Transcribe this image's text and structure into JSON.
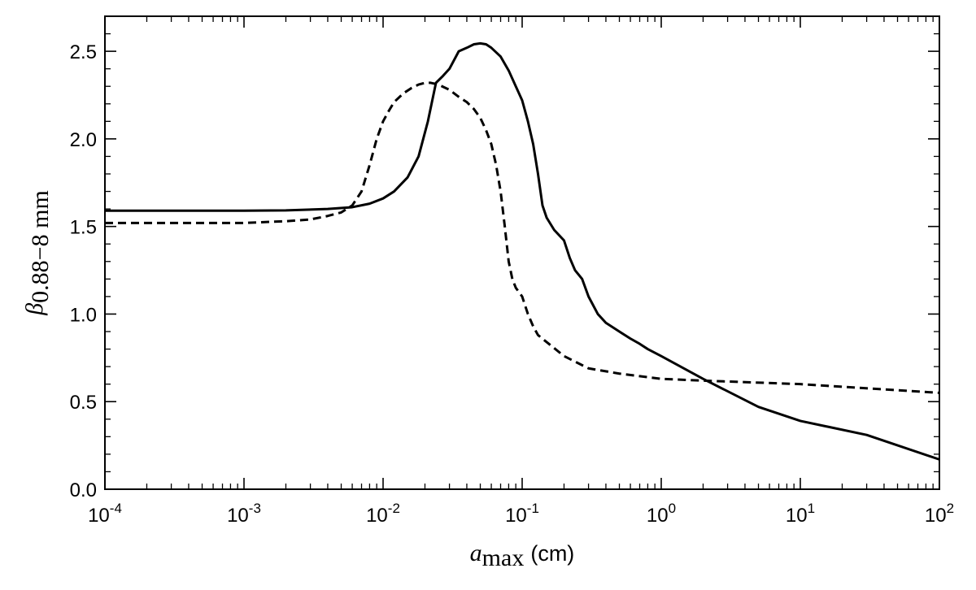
{
  "chart_data": {
    "type": "line",
    "title": "",
    "xscale": "log",
    "xlim": [
      0.0001,
      100
    ],
    "ylim": [
      0.0,
      2.7
    ],
    "xlabel": {
      "symbol": "a",
      "subscript": "max",
      "unit": "(cm)"
    },
    "ylabel": {
      "symbol": "β",
      "subscript": "0.88−8 mm"
    },
    "x_tick_labels": [
      {
        "value": 0.0001,
        "base": "10",
        "exp": "-4"
      },
      {
        "value": 0.001,
        "base": "10",
        "exp": "-3"
      },
      {
        "value": 0.01,
        "base": "10",
        "exp": "-2"
      },
      {
        "value": 0.1,
        "base": "10",
        "exp": "-1"
      },
      {
        "value": 1,
        "base": "10",
        "exp": "0"
      },
      {
        "value": 10,
        "base": "10",
        "exp": "1"
      },
      {
        "value": 100,
        "base": "10",
        "exp": "2"
      }
    ],
    "y_ticks": [
      {
        "value": 0.0,
        "label": "0.0"
      },
      {
        "value": 0.5,
        "label": "0.5"
      },
      {
        "value": 1.0,
        "label": "1.0"
      },
      {
        "value": 1.5,
        "label": "1.5"
      },
      {
        "value": 2.0,
        "label": "2.0"
      },
      {
        "value": 2.5,
        "label": "2.5"
      }
    ],
    "grid": false,
    "legend": "none",
    "series": [
      {
        "style": "solid",
        "color": "#000000",
        "x": [
          0.0001,
          0.001,
          0.002,
          0.004,
          0.006,
          0.008,
          0.01,
          0.012,
          0.015,
          0.018,
          0.021,
          0.024,
          0.027,
          0.03,
          0.035,
          0.04,
          0.045,
          0.05,
          0.055,
          0.06,
          0.07,
          0.08,
          0.09,
          0.1,
          0.11,
          0.12,
          0.13,
          0.14,
          0.15,
          0.17,
          0.2,
          0.22,
          0.24,
          0.27,
          0.3,
          0.35,
          0.4,
          0.5,
          0.6,
          0.7,
          0.8,
          1.0,
          2.0,
          5.0,
          10,
          30,
          100
        ],
        "y": [
          1.59,
          1.59,
          1.592,
          1.6,
          1.61,
          1.63,
          1.66,
          1.7,
          1.78,
          1.9,
          2.1,
          2.32,
          2.36,
          2.4,
          2.5,
          2.52,
          2.54,
          2.545,
          2.54,
          2.52,
          2.47,
          2.39,
          2.3,
          2.22,
          2.1,
          1.97,
          1.8,
          1.62,
          1.55,
          1.48,
          1.42,
          1.32,
          1.25,
          1.2,
          1.1,
          1.0,
          0.95,
          0.9,
          0.86,
          0.83,
          0.8,
          0.76,
          0.63,
          0.47,
          0.39,
          0.31,
          0.17
        ]
      },
      {
        "style": "dashed",
        "color": "#000000",
        "x": [
          0.0001,
          0.001,
          0.002,
          0.003,
          0.004,
          0.005,
          0.006,
          0.007,
          0.008,
          0.009,
          0.01,
          0.011,
          0.012,
          0.014,
          0.016,
          0.018,
          0.02,
          0.022,
          0.025,
          0.03,
          0.035,
          0.04,
          0.045,
          0.05,
          0.055,
          0.06,
          0.065,
          0.07,
          0.075,
          0.08,
          0.085,
          0.09,
          0.1,
          0.11,
          0.12,
          0.13,
          0.15,
          0.2,
          0.3,
          0.5,
          1.0,
          2.0,
          10,
          100
        ],
        "y": [
          1.52,
          1.52,
          1.53,
          1.54,
          1.56,
          1.58,
          1.62,
          1.7,
          1.85,
          2.0,
          2.1,
          2.16,
          2.21,
          2.26,
          2.29,
          2.31,
          2.32,
          2.32,
          2.31,
          2.28,
          2.24,
          2.21,
          2.17,
          2.12,
          2.05,
          1.97,
          1.85,
          1.7,
          1.5,
          1.3,
          1.2,
          1.15,
          1.1,
          1.0,
          0.93,
          0.88,
          0.84,
          0.76,
          0.69,
          0.66,
          0.63,
          0.62,
          0.6,
          0.55
        ]
      }
    ]
  }
}
